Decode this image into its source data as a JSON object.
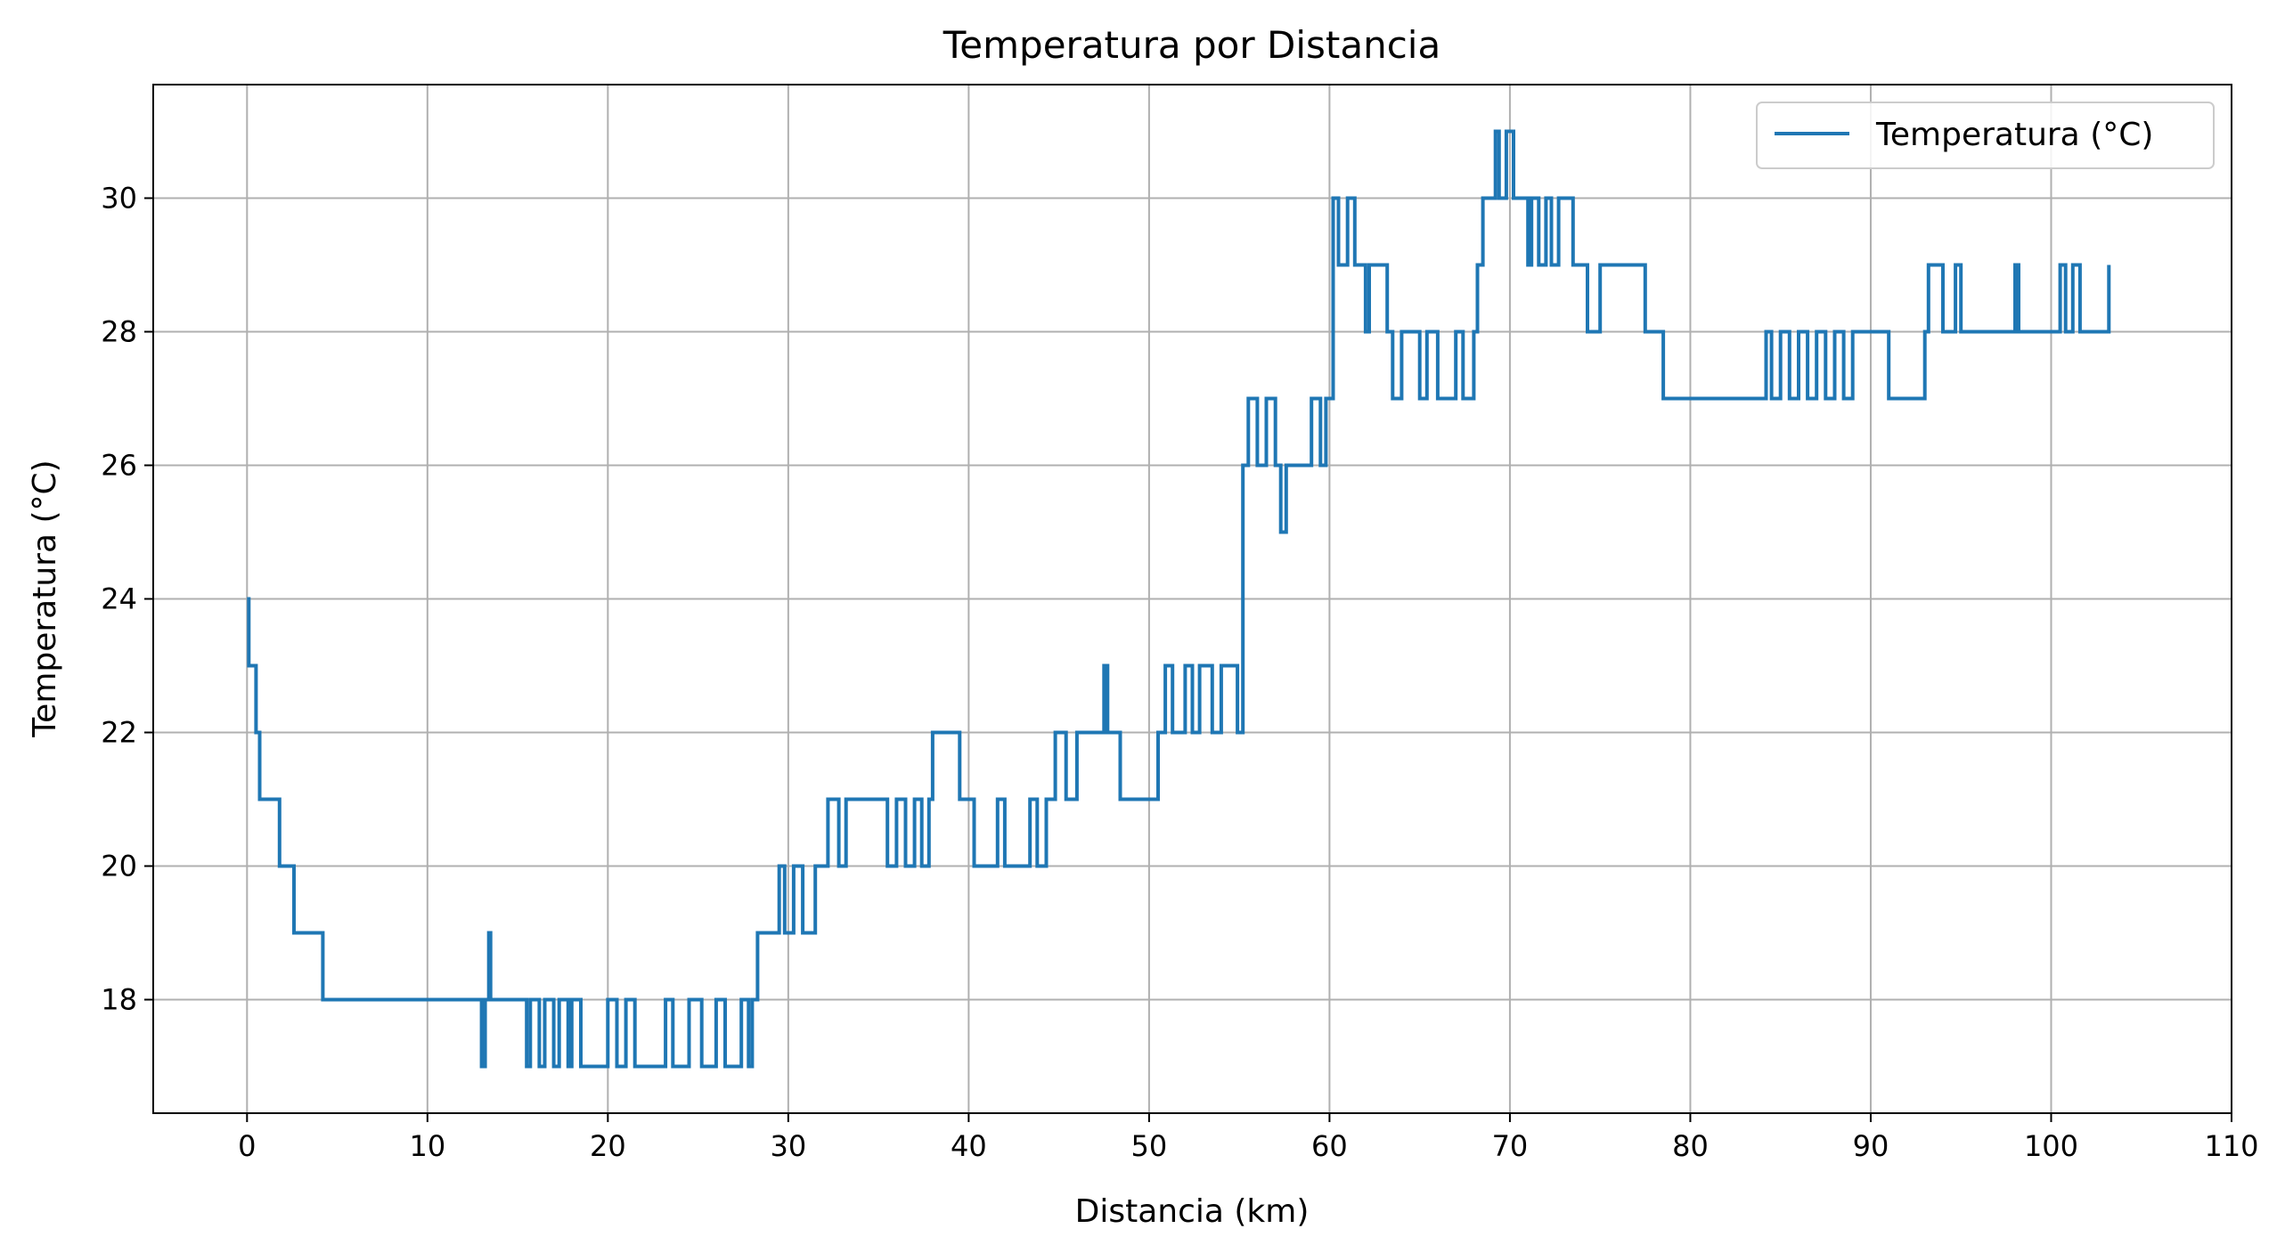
{
  "chart_data": {
    "type": "line",
    "title": "Temperatura por Distancia",
    "xlabel": "Distancia (km)",
    "ylabel": "Temperatura (°C)",
    "xlim": [
      -5.2,
      110
    ],
    "ylim": [
      16.3,
      31.7
    ],
    "xticks": [
      "0",
      "10",
      "20",
      "30",
      "40",
      "50",
      "60",
      "70",
      "80",
      "90",
      "100",
      "110"
    ],
    "yticks": [
      "18",
      "20",
      "22",
      "24",
      "26",
      "28",
      "30"
    ],
    "grid": true,
    "legend_position": "top-right",
    "series": [
      {
        "name": "Temperatura (°C)",
        "color": "#1f77b4",
        "x": [
          0,
          0.1,
          0.5,
          0.7,
          1.0,
          1.8,
          2.6,
          4.0,
          4.2,
          8.0,
          12.8,
          13.0,
          13.2,
          13.4,
          13.5,
          15.5,
          15.7,
          16.2,
          16.5,
          17.0,
          17.3,
          17.8,
          18.0,
          18.5,
          19.5,
          20.0,
          20.5,
          21.0,
          21.5,
          23.2,
          23.6,
          24.5,
          25.2,
          26.0,
          26.5,
          27.4,
          27.8,
          28.0,
          28.3,
          28.5,
          29.5,
          29.8,
          30.3,
          30.8,
          31.5,
          32.0,
          32.2,
          32.8,
          33.2,
          35.5,
          36.0,
          36.5,
          37.0,
          37.4,
          37.8,
          38.0,
          38.4,
          39.5,
          39.8,
          40.3,
          41.0,
          41.6,
          42.0,
          43.0,
          43.4,
          43.8,
          44.3,
          44.8,
          45.4,
          46.0,
          47.5,
          47.7,
          48.4,
          50.5,
          50.9,
          51.3,
          52.0,
          52.4,
          52.8,
          53.5,
          54.0,
          54.6,
          54.9,
          55.2,
          55.5,
          56.0,
          56.5,
          57.0,
          57.3,
          57.6,
          58.6,
          59.0,
          59.5,
          59.8,
          60.2,
          60.5,
          61.0,
          61.4,
          62.0,
          62.2,
          63.2,
          63.5,
          64.0,
          65.0,
          65.4,
          66.0,
          67.0,
          67.4,
          68.0,
          68.2,
          68.5,
          69.2,
          69.4,
          69.8,
          70.2,
          70.6,
          71.0,
          71.2,
          71.6,
          72.0,
          72.3,
          72.7,
          73.5,
          74.0,
          74.3,
          75.0,
          77.5,
          78.2,
          78.5,
          80.0,
          82.0,
          84.0,
          84.2,
          84.5,
          85.0,
          85.5,
          86.0,
          86.5,
          87.0,
          87.5,
          88.0,
          88.5,
          89.0,
          90.0,
          91.0,
          93.0,
          93.2,
          94.0,
          94.7,
          95.0,
          98.0,
          98.2,
          100.5,
          100.8,
          101.2,
          101.6,
          103.2
        ],
        "y": [
          24,
          23,
          22,
          21,
          21,
          20,
          19,
          19,
          18,
          18,
          18,
          17,
          18,
          19,
          18,
          17,
          18,
          17,
          18,
          17,
          18,
          17,
          18,
          17,
          17,
          18,
          17,
          18,
          17,
          18,
          17,
          18,
          17,
          18,
          17,
          18,
          17,
          18,
          19,
          19,
          20,
          19,
          20,
          19,
          20,
          20,
          21,
          20,
          21,
          20,
          21,
          20,
          21,
          20,
          21,
          22,
          22,
          21,
          21,
          20,
          20,
          21,
          20,
          20,
          21,
          20,
          21,
          22,
          21,
          22,
          23,
          22,
          21,
          22,
          23,
          22,
          23,
          22,
          23,
          22,
          23,
          23,
          22,
          26,
          27,
          26,
          27,
          26,
          25,
          26,
          26,
          27,
          26,
          27,
          30,
          29,
          30,
          29,
          28,
          29,
          28,
          27,
          28,
          27,
          28,
          27,
          28,
          27,
          28,
          29,
          30,
          31,
          30,
          31,
          30,
          30,
          29,
          30,
          29,
          30,
          29,
          30,
          29,
          29,
          28,
          29,
          28,
          28,
          27,
          27,
          27,
          27,
          28,
          27,
          28,
          27,
          28,
          27,
          28,
          27,
          28,
          27,
          28,
          28,
          27,
          28,
          29,
          28,
          29,
          28,
          29,
          28,
          29,
          28,
          29,
          28,
          29
        ]
      }
    ]
  }
}
